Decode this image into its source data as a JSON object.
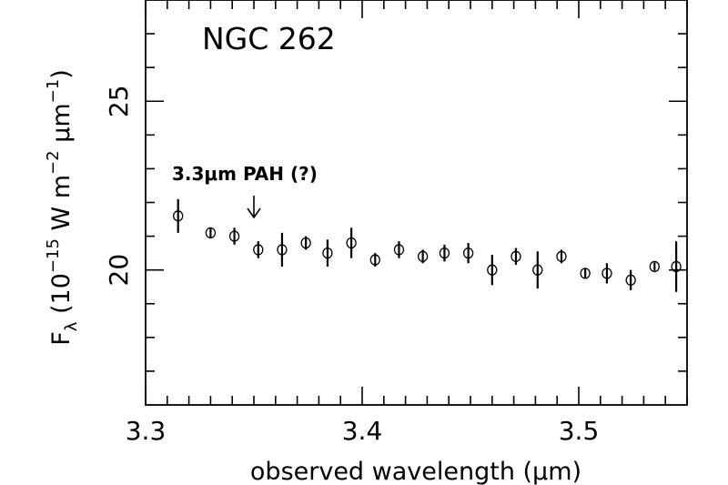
{
  "chart_data": {
    "type": "scatter",
    "title": "NGC 262",
    "xlabel": "observed wavelength (μm)",
    "ylabel": {
      "base": "F",
      "sub": "λ",
      "text1": " (10",
      "exp1": "−15",
      "text2": " W m",
      "exp2": "−2",
      "text3": " μm",
      "exp3": "−1",
      "text4": ")"
    },
    "xlim": [
      3.3,
      3.55
    ],
    "ylim": [
      16,
      28
    ],
    "x_ticks": [
      {
        "value": 3.3,
        "label": "3.3"
      },
      {
        "value": 3.4,
        "label": "3.4"
      },
      {
        "value": 3.5,
        "label": "3.5"
      }
    ],
    "y_ticks": [
      {
        "value": 20,
        "label": "20"
      },
      {
        "value": 25,
        "label": "25"
      }
    ],
    "annotation": {
      "text": "3.3μm PAH (?)",
      "x": 3.35,
      "y_tip": 21.6
    },
    "grid": false,
    "points": [
      {
        "x": 3.315,
        "y": 21.6,
        "err": 0.5
      },
      {
        "x": 3.33,
        "y": 21.1,
        "err": 0.15
      },
      {
        "x": 3.341,
        "y": 21.0,
        "err": 0.25
      },
      {
        "x": 3.352,
        "y": 20.6,
        "err": 0.25
      },
      {
        "x": 3.363,
        "y": 20.6,
        "err": 0.5
      },
      {
        "x": 3.374,
        "y": 20.8,
        "err": 0.2
      },
      {
        "x": 3.384,
        "y": 20.5,
        "err": 0.4
      },
      {
        "x": 3.395,
        "y": 20.8,
        "err": 0.45
      },
      {
        "x": 3.406,
        "y": 20.3,
        "err": 0.2
      },
      {
        "x": 3.417,
        "y": 20.6,
        "err": 0.25
      },
      {
        "x": 3.428,
        "y": 20.4,
        "err": 0.2
      },
      {
        "x": 3.438,
        "y": 20.5,
        "err": 0.25
      },
      {
        "x": 3.449,
        "y": 20.5,
        "err": 0.3
      },
      {
        "x": 3.46,
        "y": 20.0,
        "err": 0.45
      },
      {
        "x": 3.471,
        "y": 20.4,
        "err": 0.25
      },
      {
        "x": 3.481,
        "y": 20.0,
        "err": 0.55
      },
      {
        "x": 3.492,
        "y": 20.4,
        "err": 0.2
      },
      {
        "x": 3.503,
        "y": 19.9,
        "err": 0.15
      },
      {
        "x": 3.513,
        "y": 19.9,
        "err": 0.3
      },
      {
        "x": 3.524,
        "y": 19.7,
        "err": 0.3
      },
      {
        "x": 3.535,
        "y": 20.1,
        "err": 0.12
      },
      {
        "x": 3.545,
        "y": 20.1,
        "err": 0.75
      }
    ]
  }
}
